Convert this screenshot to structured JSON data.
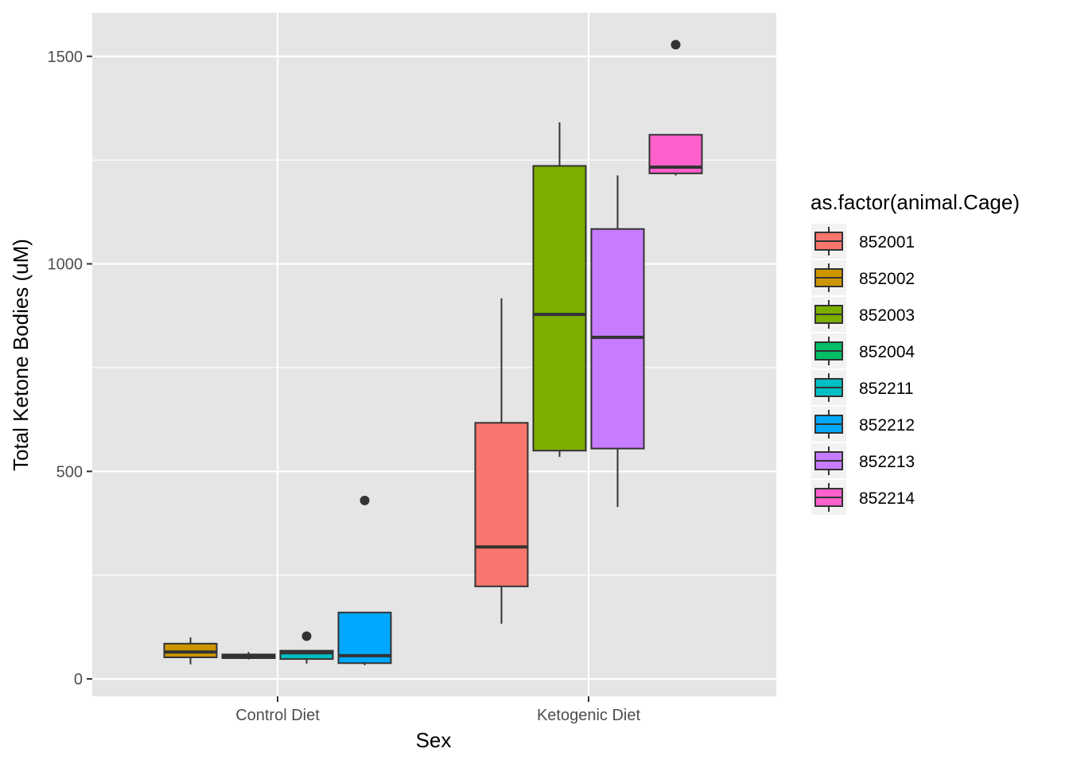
{
  "chart_data": {
    "type": "boxplot",
    "xlabel": "Sex",
    "ylabel": "Total Ketone Bodies (uM)",
    "ylim": [
      -42,
      1605
    ],
    "y_ticks": [
      0,
      500,
      1000,
      1500
    ],
    "categories": [
      "Control Diet",
      "Ketogenic Diet"
    ],
    "grid": true,
    "legend": {
      "title": "as.factor(animal.Cage)",
      "position": "right",
      "items": [
        {
          "label": "852001",
          "color": "#F8766D"
        },
        {
          "label": "852002",
          "color": "#CD9600"
        },
        {
          "label": "852003",
          "color": "#7CAE00"
        },
        {
          "label": "852004",
          "color": "#00BE67"
        },
        {
          "label": "852211",
          "color": "#00BFC4"
        },
        {
          "label": "852212",
          "color": "#00A9FF"
        },
        {
          "label": "852213",
          "color": "#C77CFF"
        },
        {
          "label": "852214",
          "color": "#FF61CC"
        }
      ]
    },
    "boxes": [
      {
        "category": "Control Diet",
        "cage": "852002",
        "color": "#CD9600",
        "whisker_low": 35,
        "q1": 52,
        "median": 65,
        "q3": 85,
        "whisker_high": 100,
        "outliers": []
      },
      {
        "category": "Control Diet",
        "cage": "852004",
        "color": "#00BE67",
        "whisker_low": 47,
        "q1": 50,
        "median": 55,
        "q3": 59,
        "whisker_high": 65,
        "outliers": []
      },
      {
        "category": "Control Diet",
        "cage": "852211",
        "color": "#00BFC4",
        "whisker_low": 37,
        "q1": 48,
        "median": 63,
        "q3": 68,
        "whisker_high": 70,
        "outliers": [
          103
        ]
      },
      {
        "category": "Control Diet",
        "cage": "852212",
        "color": "#00A9FF",
        "whisker_low": 33,
        "q1": 38,
        "median": 56,
        "q3": 160,
        "whisker_high": 160,
        "outliers": [
          430
        ]
      },
      {
        "category": "Ketogenic Diet",
        "cage": "852001",
        "color": "#F8766D",
        "whisker_low": 133,
        "q1": 223,
        "median": 318,
        "q3": 617,
        "whisker_high": 917,
        "outliers": []
      },
      {
        "category": "Ketogenic Diet",
        "cage": "852003",
        "color": "#7CAE00",
        "whisker_low": 535,
        "q1": 550,
        "median": 878,
        "q3": 1236,
        "whisker_high": 1341,
        "outliers": []
      },
      {
        "category": "Ketogenic Diet",
        "cage": "852213",
        "color": "#C77CFF",
        "whisker_low": 414,
        "q1": 555,
        "median": 823,
        "q3": 1084,
        "whisker_high": 1213,
        "outliers": []
      },
      {
        "category": "Ketogenic Diet",
        "cage": "852214",
        "color": "#FF61CC",
        "whisker_low": 1213,
        "q1": 1218,
        "median": 1233,
        "q3": 1311,
        "whisker_high": 1311,
        "outliers": [
          1528
        ]
      }
    ]
  }
}
